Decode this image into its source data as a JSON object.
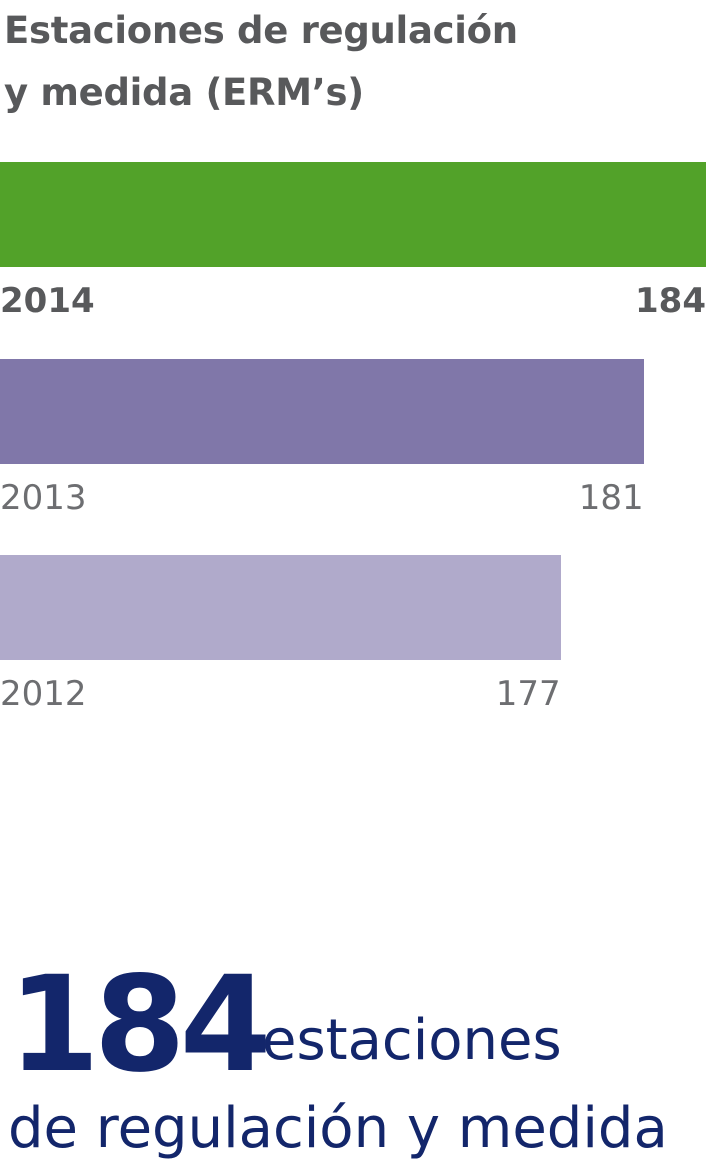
{
  "chart_data": {
    "type": "bar",
    "orientation": "horizontal",
    "title_lines": [
      "Estaciones de regulación",
      "y medida (ERM’s)"
    ],
    "categories": [
      "2014",
      "2013",
      "2012"
    ],
    "values": [
      184,
      181,
      177
    ],
    "value_labels": [
      "184",
      "181",
      "177"
    ],
    "colors": [
      "#52a229",
      "#8077a9",
      "#b0aacb"
    ],
    "highlight": "2014"
  },
  "summary": {
    "number": "184",
    "line1": "estaciones",
    "line2": "de regulación y medida",
    "color": "#13266b"
  }
}
